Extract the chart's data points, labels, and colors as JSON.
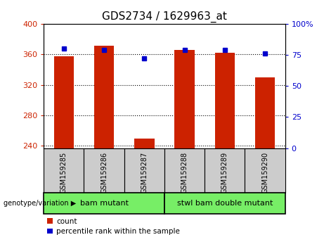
{
  "title": "GDS2734 / 1629963_at",
  "samples": [
    "GSM159285",
    "GSM159286",
    "GSM159287",
    "GSM159288",
    "GSM159289",
    "GSM159290"
  ],
  "counts": [
    357,
    371,
    250,
    366,
    362,
    330
  ],
  "percentiles": [
    80,
    79,
    72,
    79,
    79,
    76
  ],
  "baseline": 237,
  "ylim_left": [
    237,
    400
  ],
  "ylim_right": [
    0,
    100
  ],
  "yticks_left": [
    240,
    280,
    320,
    360,
    400
  ],
  "yticks_right": [
    0,
    25,
    50,
    75,
    100
  ],
  "ytick_labels_right": [
    "0",
    "25",
    "50",
    "75",
    "100%"
  ],
  "bar_color": "#cc2200",
  "percentile_color": "#0000cc",
  "groups": [
    {
      "label": "bam mutant",
      "start": 0,
      "end": 3,
      "color": "#77ee66"
    },
    {
      "label": "stwl bam double mutant",
      "start": 3,
      "end": 6,
      "color": "#77ee66"
    }
  ],
  "group_label_prefix": "genotype/variation",
  "legend_count_label": "count",
  "legend_percentile_label": "percentile rank within the sample",
  "bar_width": 0.5,
  "title_fontsize": 11,
  "tick_fontsize": 8,
  "label_fontsize": 7,
  "group_fontsize": 8,
  "legend_fontsize": 7.5
}
